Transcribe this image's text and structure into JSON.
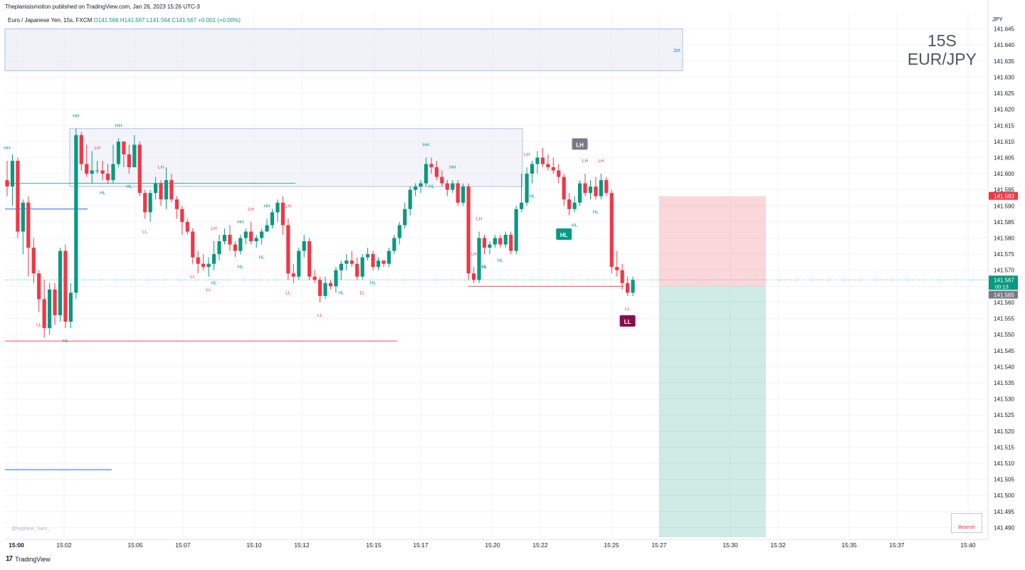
{
  "header": {
    "published": "Theplanisismotion published on TradingView.com, Jan 26, 2023 15:26 UTC-3"
  },
  "legend": {
    "symbol": "Euro / Japanese Yen, 15s, FXCM",
    "ohlc": "O141.566  H141.567  L141.564  C141.567  +0.001 (+0.00%)"
  },
  "watermark": {
    "interval": "15S",
    "pair": "EUR/JPY"
  },
  "footer": {
    "brand": "TradingView"
  },
  "credit": "@hephew_Sam_",
  "bearish_label": "Bearish",
  "colors": {
    "up": "#089981",
    "down": "#f23645",
    "grid": "#f0f3fa",
    "zone": "#e9edf5",
    "zone_border": "#a8bff5"
  },
  "chart_data": {
    "type": "candlestick",
    "currency": "JPY",
    "ylim": [
      141.487,
      141.65
    ],
    "y_ticks": [
      "141.645",
      "141.640",
      "141.635",
      "141.630",
      "141.625",
      "141.620",
      "141.615",
      "141.610",
      "141.605",
      "141.600",
      "141.595",
      "141.590",
      "141.585",
      "141.580",
      "141.575",
      "141.570",
      "141.565",
      "141.560",
      "141.555",
      "141.550",
      "141.545",
      "141.540",
      "141.535",
      "141.530",
      "141.525",
      "141.520",
      "141.515",
      "141.510",
      "141.505",
      "141.500",
      "141.495",
      "141.490"
    ],
    "x_ticks": [
      "15:00",
      "15:02",
      "15:05",
      "15:07",
      "15:10",
      "15:12",
      "15:15",
      "15:17",
      "15:20",
      "15:22",
      "15:25",
      "15:27",
      "15:30",
      "15:32",
      "15:35",
      "15:37",
      "15:40"
    ],
    "price_labels": [
      {
        "text": "141.593",
        "color": "#f23645"
      },
      {
        "text": "141.567",
        "sub": "00:13",
        "color": "#089981"
      },
      {
        "text": "141.565",
        "color": "#787b86"
      }
    ],
    "candles": [
      [
        141.598,
        141.604,
        141.593,
        141.596
      ],
      [
        141.596,
        141.606,
        141.59,
        141.604
      ],
      [
        141.604,
        141.605,
        141.58,
        141.582
      ],
      [
        141.582,
        141.592,
        141.575,
        141.591
      ],
      [
        141.591,
        141.593,
        141.568,
        141.577
      ],
      [
        141.577,
        141.58,
        141.566,
        141.569
      ],
      [
        141.569,
        141.57,
        141.557,
        141.561
      ],
      [
        141.561,
        141.567,
        141.549,
        141.552
      ],
      [
        141.552,
        141.566,
        141.55,
        141.564
      ],
      [
        141.564,
        141.566,
        141.553,
        141.556
      ],
      [
        141.556,
        141.577,
        141.554,
        141.576
      ],
      [
        141.576,
        141.578,
        141.552,
        141.554
      ],
      [
        141.554,
        141.566,
        141.552,
        141.563
      ],
      [
        141.563,
        141.614,
        141.561,
        141.612
      ],
      [
        141.612,
        141.613,
        141.601,
        141.603
      ],
      [
        141.603,
        141.609,
        141.599,
        141.6
      ],
      [
        141.6,
        141.607,
        141.597,
        141.601
      ],
      [
        141.601,
        141.604,
        141.6,
        141.601
      ],
      [
        141.601,
        141.604,
        141.598,
        141.6
      ],
      [
        141.6,
        141.603,
        141.597,
        141.598
      ],
      [
        141.598,
        141.609,
        141.597,
        141.603
      ],
      [
        141.603,
        141.611,
        141.602,
        141.61
      ],
      [
        141.61,
        141.61,
        141.602,
        141.606
      ],
      [
        141.606,
        141.609,
        141.6,
        141.602
      ],
      [
        141.602,
        141.612,
        141.602,
        141.609
      ],
      [
        141.609,
        141.61,
        141.593,
        141.594
      ],
      [
        141.594,
        141.595,
        141.586,
        141.588
      ],
      [
        141.588,
        141.595,
        141.585,
        141.594
      ],
      [
        141.594,
        141.599,
        141.592,
        141.597
      ],
      [
        141.597,
        141.598,
        141.59,
        141.592
      ],
      [
        141.592,
        141.602,
        141.589,
        141.598
      ],
      [
        141.598,
        141.6,
        141.591,
        141.592
      ],
      [
        141.592,
        141.593,
        141.586,
        141.589
      ],
      [
        141.589,
        141.59,
        141.581,
        141.585
      ],
      [
        141.585,
        141.586,
        141.581,
        141.582
      ],
      [
        141.582,
        141.583,
        141.572,
        141.574
      ],
      [
        141.574,
        141.576,
        141.569,
        141.572
      ],
      [
        141.572,
        141.575,
        141.57,
        141.571
      ],
      [
        141.571,
        141.574,
        141.568,
        141.572
      ],
      [
        141.572,
        141.579,
        141.57,
        141.575
      ],
      [
        141.575,
        141.581,
        141.573,
        141.579
      ],
      [
        141.579,
        141.583,
        141.578,
        141.581
      ],
      [
        141.581,
        141.584,
        141.576,
        141.578
      ],
      [
        141.578,
        141.579,
        141.574,
        141.576
      ],
      [
        141.576,
        141.581,
        141.575,
        141.58
      ],
      [
        141.58,
        141.583,
        141.578,
        141.582
      ],
      [
        141.582,
        141.585,
        141.578,
        141.579
      ],
      [
        141.579,
        141.581,
        141.577,
        141.58
      ],
      [
        141.58,
        141.583,
        141.578,
        141.582
      ],
      [
        141.582,
        141.586,
        141.582,
        141.584
      ],
      [
        141.584,
        141.589,
        141.583,
        141.588
      ],
      [
        141.588,
        141.592,
        141.585,
        141.591
      ],
      [
        141.591,
        141.593,
        141.581,
        141.584
      ],
      [
        141.584,
        141.586,
        141.567,
        141.569
      ],
      [
        141.569,
        141.572,
        141.566,
        141.568
      ],
      [
        141.568,
        141.577,
        141.567,
        141.576
      ],
      [
        141.576,
        141.581,
        141.574,
        141.579
      ],
      [
        141.579,
        141.58,
        141.567,
        141.568
      ],
      [
        141.568,
        141.57,
        141.566,
        141.567
      ],
      [
        141.567,
        141.568,
        141.56,
        141.562
      ],
      [
        141.562,
        141.568,
        141.561,
        141.566
      ],
      [
        141.566,
        141.567,
        141.564,
        141.565
      ],
      [
        141.565,
        141.571,
        141.563,
        141.57
      ],
      [
        141.57,
        141.573,
        141.567,
        141.572
      ],
      [
        141.572,
        141.575,
        141.57,
        141.573
      ],
      [
        141.573,
        141.576,
        141.571,
        141.572
      ],
      [
        141.572,
        141.574,
        141.567,
        141.568
      ],
      [
        141.568,
        141.575,
        141.567,
        141.574
      ],
      [
        141.574,
        141.577,
        141.573,
        141.575
      ],
      [
        141.575,
        141.576,
        141.57,
        141.571
      ],
      [
        141.571,
        141.574,
        141.57,
        141.573
      ],
      [
        141.573,
        141.573,
        141.571,
        141.572
      ],
      [
        141.572,
        141.577,
        141.571,
        141.576
      ],
      [
        141.576,
        141.581,
        141.575,
        141.58
      ],
      [
        141.58,
        141.585,
        141.578,
        141.584
      ],
      [
        141.584,
        141.591,
        141.583,
        141.589
      ],
      [
        141.589,
        141.596,
        141.587,
        141.595
      ],
      [
        141.595,
        141.597,
        141.593,
        141.596
      ],
      [
        141.596,
        141.598,
        141.594,
        141.597
      ],
      [
        141.597,
        141.605,
        141.596,
        141.603
      ],
      [
        141.603,
        141.605,
        141.6,
        141.602
      ],
      [
        141.602,
        141.604,
        141.598,
        141.599
      ],
      [
        141.599,
        141.601,
        141.596,
        141.597
      ],
      [
        141.597,
        141.598,
        141.593,
        141.595
      ],
      [
        141.595,
        141.598,
        141.594,
        141.597
      ],
      [
        141.597,
        141.598,
        141.59,
        141.591
      ],
      [
        141.591,
        141.597,
        141.59,
        141.596
      ],
      [
        141.596,
        141.597,
        141.567,
        141.569
      ],
      [
        141.569,
        141.571,
        141.566,
        141.567
      ],
      [
        141.567,
        141.582,
        141.566,
        141.58
      ],
      [
        141.58,
        141.581,
        141.575,
        141.577
      ],
      [
        141.577,
        141.579,
        141.575,
        141.578
      ],
      [
        141.578,
        141.581,
        141.577,
        141.58
      ],
      [
        141.58,
        141.581,
        141.577,
        141.578
      ],
      [
        141.578,
        141.582,
        141.577,
        141.581
      ],
      [
        141.581,
        141.582,
        141.575,
        141.576
      ],
      [
        141.576,
        141.59,
        141.575,
        141.589
      ],
      [
        141.589,
        141.6,
        141.588,
        141.591
      ],
      [
        141.591,
        141.602,
        141.59,
        141.6
      ],
      [
        141.6,
        141.604,
        141.597,
        141.603
      ],
      [
        141.603,
        141.607,
        141.6,
        141.605
      ],
      [
        141.605,
        141.608,
        141.602,
        141.603
      ],
      [
        141.603,
        141.606,
        141.601,
        141.602
      ],
      [
        141.602,
        141.605,
        141.6,
        141.601
      ],
      [
        141.601,
        141.603,
        141.597,
        141.599
      ],
      [
        141.599,
        141.6,
        141.59,
        141.592
      ],
      [
        141.592,
        141.594,
        141.587,
        141.589
      ],
      [
        141.589,
        141.593,
        141.588,
        141.591
      ],
      [
        141.591,
        141.598,
        141.59,
        141.597
      ],
      [
        141.597,
        141.6,
        141.593,
        141.594
      ],
      [
        141.594,
        141.598,
        141.592,
        141.596
      ],
      [
        141.596,
        141.599,
        141.592,
        141.593
      ],
      [
        141.593,
        141.6,
        141.592,
        141.598
      ],
      [
        141.598,
        141.599,
        141.593,
        141.594
      ],
      [
        141.594,
        141.595,
        141.569,
        141.571
      ],
      [
        141.571,
        141.576,
        141.568,
        141.57
      ],
      [
        141.57,
        141.572,
        141.564,
        141.566
      ],
      [
        141.566,
        141.568,
        141.562,
        141.563
      ],
      [
        141.563,
        141.568,
        141.562,
        141.567
      ]
    ],
    "markers": [
      {
        "i": 0,
        "text": "HH",
        "c": "up"
      },
      {
        "i": 13,
        "text": "HH",
        "c": "up"
      },
      {
        "i": 21,
        "text": "HH",
        "c": "up"
      },
      {
        "i": 44,
        "text": "HH",
        "c": "up"
      },
      {
        "i": 49,
        "text": "HH",
        "c": "up"
      },
      {
        "i": 79,
        "text": "HH",
        "c": "up"
      },
      {
        "i": 84,
        "text": "HH",
        "c": "up"
      },
      {
        "i": 17,
        "text": "LH",
        "c": "down"
      },
      {
        "i": 29,
        "text": "LH",
        "c": "down"
      },
      {
        "i": 39,
        "text": "LH",
        "c": "down"
      },
      {
        "i": 46,
        "text": "LH",
        "c": "down"
      },
      {
        "i": 53,
        "text": "LH",
        "c": "down"
      },
      {
        "i": 88,
        "text": "LH",
        "c": "down"
      },
      {
        "i": 89,
        "text": "LH",
        "c": "down"
      },
      {
        "i": 98,
        "text": "LH",
        "c": "down"
      },
      {
        "i": 109,
        "text": "LH",
        "c": "down"
      },
      {
        "i": 112,
        "text": "LH",
        "c": "down"
      },
      {
        "i": 6,
        "text": "LL",
        "c": "down"
      },
      {
        "i": 26,
        "text": "LL",
        "c": "down"
      },
      {
        "i": 35,
        "text": "LL",
        "c": "down"
      },
      {
        "i": 38,
        "text": "LL",
        "c": "down"
      },
      {
        "i": 53,
        "text": "LL",
        "c": "down"
      },
      {
        "i": 59,
        "text": "LL",
        "c": "down"
      },
      {
        "i": 67,
        "text": "LL",
        "c": "down"
      },
      {
        "i": 90,
        "text": "LL",
        "c": "down"
      },
      {
        "i": 117,
        "text": "LL",
        "c": "down"
      },
      {
        "i": 11,
        "text": "HL",
        "c": "up"
      },
      {
        "i": 18,
        "text": "HL",
        "c": "up"
      },
      {
        "i": 23,
        "text": "HL",
        "c": "up"
      },
      {
        "i": 39,
        "text": "HL",
        "c": "up"
      },
      {
        "i": 44,
        "text": "HL",
        "c": "up"
      },
      {
        "i": 48,
        "text": "HL",
        "c": "up"
      },
      {
        "i": 63,
        "text": "HL",
        "c": "up"
      },
      {
        "i": 69,
        "text": "HL",
        "c": "up"
      },
      {
        "i": 80,
        "text": "HL",
        "c": "up"
      },
      {
        "i": 90,
        "text": "HL",
        "c": "up"
      },
      {
        "i": 93,
        "text": "HL",
        "c": "up"
      },
      {
        "i": 99,
        "text": "HL",
        "c": "up"
      },
      {
        "i": 107,
        "text": "HL",
        "c": "up"
      },
      {
        "i": 111,
        "text": "HL",
        "c": "up"
      }
    ],
    "zones": [
      {
        "label": "1m",
        "from": 141.632,
        "to": 141.645
      },
      {
        "label": "",
        "from": 141.596,
        "to": 141.614
      }
    ],
    "tags": [
      {
        "text": "LH",
        "i": 108,
        "price": 141.609,
        "color": "#787b86"
      },
      {
        "text": "HL",
        "i": 105,
        "price": 141.581,
        "color": "#089981"
      },
      {
        "text": "LL",
        "i": 117,
        "price": 141.554,
        "color": "#880e4f"
      }
    ],
    "position": {
      "entry": 141.565,
      "stop": 141.593,
      "target": 141.487
    }
  }
}
